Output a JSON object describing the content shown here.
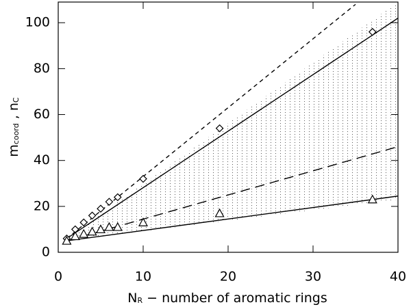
{
  "chart_data": {
    "type": "line",
    "x_label": {
      "main": "N",
      "sub": "R",
      "rest": " − number of aromatic rings"
    },
    "y_label": {
      "main1": "m",
      "sub1": "coord",
      "mid": " , n",
      "sub2": "C"
    },
    "xlim": [
      0,
      40
    ],
    "ylim": [
      0,
      109
    ],
    "xticks": [
      0,
      10,
      20,
      30,
      40
    ],
    "yticks": [
      0,
      20,
      40,
      60,
      80,
      100
    ],
    "bands": [
      {
        "x": [
          1,
          40
        ],
        "lower": [
          5,
          52
        ],
        "upper": [
          6,
          109
        ]
      },
      {
        "x": [
          1,
          40
        ],
        "lower": [
          5,
          23
        ],
        "upper": [
          5,
          85
        ]
      }
    ],
    "series": [
      {
        "style": "dash",
        "color": "#000",
        "x": [
          1,
          35
        ],
        "values": [
          6,
          108
        ]
      },
      {
        "style": "solid",
        "color": "#000",
        "x": [
          1,
          40
        ],
        "values": [
          6,
          102
        ]
      },
      {
        "style": "longdash",
        "color": "#000",
        "x": [
          1,
          40
        ],
        "values": [
          5,
          46
        ]
      },
      {
        "style": "solid",
        "color": "#000",
        "x": [
          1,
          40
        ],
        "values": [
          5,
          24.5
        ]
      },
      {
        "marker": "diamond",
        "color": "#000",
        "x": [
          1,
          2,
          3,
          4,
          5,
          6,
          7,
          10,
          19,
          37
        ],
        "values": [
          6,
          10,
          13,
          16,
          19,
          22,
          24,
          32,
          54,
          96
        ]
      },
      {
        "marker": "triangle",
        "color": "#000",
        "x": [
          1,
          2,
          3,
          4,
          5,
          6,
          7,
          10,
          19,
          37
        ],
        "values": [
          5,
          7,
          8,
          9,
          10,
          11,
          11,
          13,
          17,
          23
        ]
      }
    ]
  }
}
